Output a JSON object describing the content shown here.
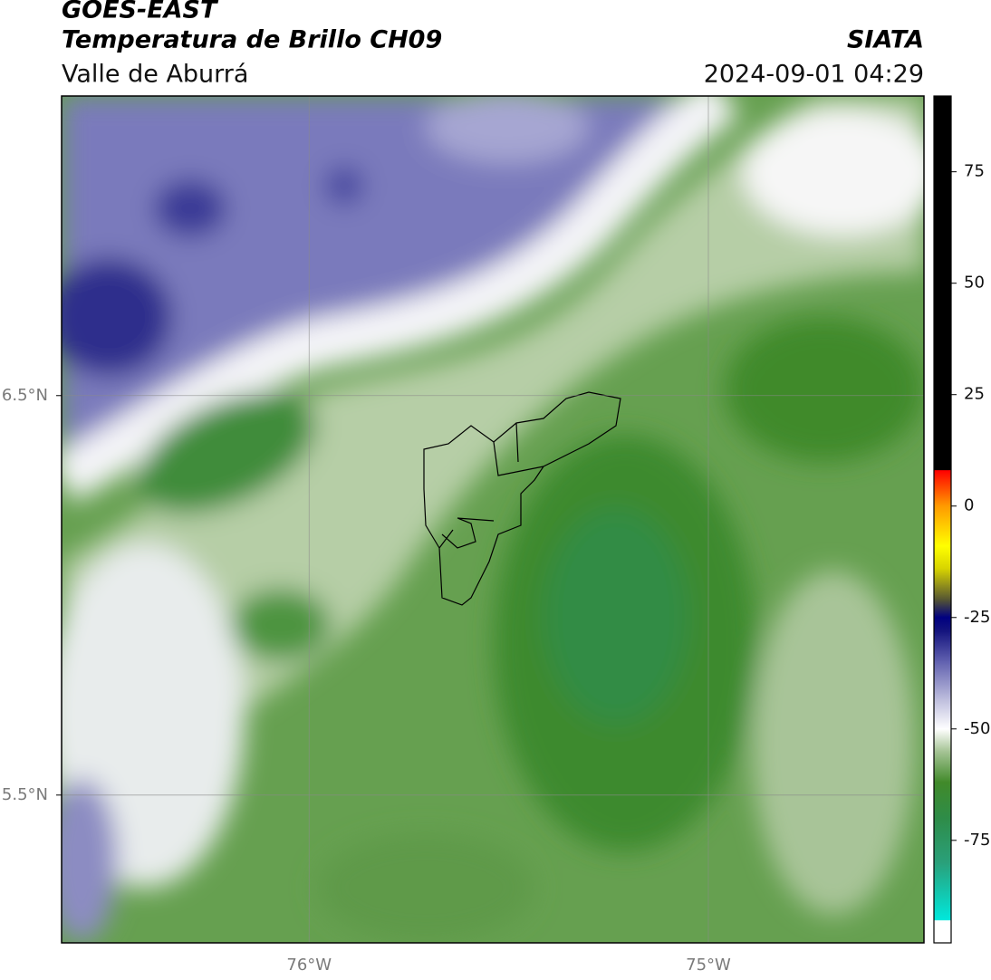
{
  "header": {
    "title": "GOES-EAST",
    "subtitle": "Temperatura de Brillo CH09",
    "region": "Valle de Aburrá",
    "source": "SIATA",
    "datetime": "2024-09-01 04:29"
  },
  "map": {
    "xlim": [
      -76.62,
      -74.46
    ],
    "ylim": [
      5.13,
      7.25
    ],
    "xticks": [
      {
        "value": -76,
        "label": "76°W"
      },
      {
        "value": -75,
        "label": "75°W"
      }
    ],
    "yticks": [
      {
        "value": 5.5,
        "label": "5.5°N"
      },
      {
        "value": 6.5,
        "label": "6.5°N"
      }
    ],
    "grid": true
  },
  "colorbar": {
    "lim": [
      -98,
      92
    ],
    "ticks": [
      -75,
      -50,
      -25,
      0,
      25,
      50,
      75
    ],
    "colormap": [
      {
        "value": -98,
        "color": "#ffffff"
      },
      {
        "value": -93,
        "color": "#ffffff"
      },
      {
        "value": -92.9,
        "color": "#00e8dc"
      },
      {
        "value": -80,
        "color": "#2aa07a"
      },
      {
        "value": -70,
        "color": "#2e8c48"
      },
      {
        "value": -62,
        "color": "#418a2a"
      },
      {
        "value": -55,
        "color": "#a6c496"
      },
      {
        "value": -50,
        "color": "#ffffff"
      },
      {
        "value": -44,
        "color": "#c4c4e0"
      },
      {
        "value": -35,
        "color": "#6262b0"
      },
      {
        "value": -28,
        "color": "#14147e"
      },
      {
        "value": -25,
        "color": "#000080"
      },
      {
        "value": -21,
        "color": "#555533"
      },
      {
        "value": -14,
        "color": "#d8d400"
      },
      {
        "value": -9,
        "color": "#ffff00"
      },
      {
        "value": 0,
        "color": "#ff9a00"
      },
      {
        "value": 8,
        "color": "#ff0000"
      },
      {
        "value": 8.1,
        "color": "#000000"
      },
      {
        "value": 92,
        "color": "#000000"
      }
    ]
  }
}
